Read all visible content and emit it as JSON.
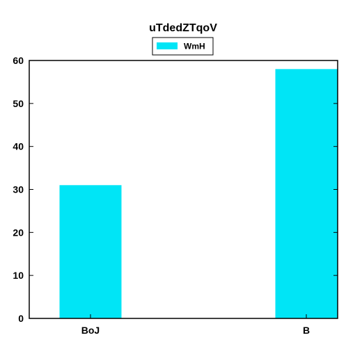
{
  "chart_data": {
    "type": "bar",
    "title": "uTdedZTqoV",
    "xlabel": "",
    "ylabel": "",
    "categories": [
      "BoJ",
      "B"
    ],
    "series": [
      {
        "name": "WmH",
        "values": [
          31,
          58
        ],
        "color": "#00e5f6"
      }
    ],
    "ylim": [
      0,
      60
    ],
    "yticks": [
      0,
      10,
      20,
      30,
      40,
      50,
      60
    ],
    "grid": false,
    "legend_position": "top-center"
  }
}
